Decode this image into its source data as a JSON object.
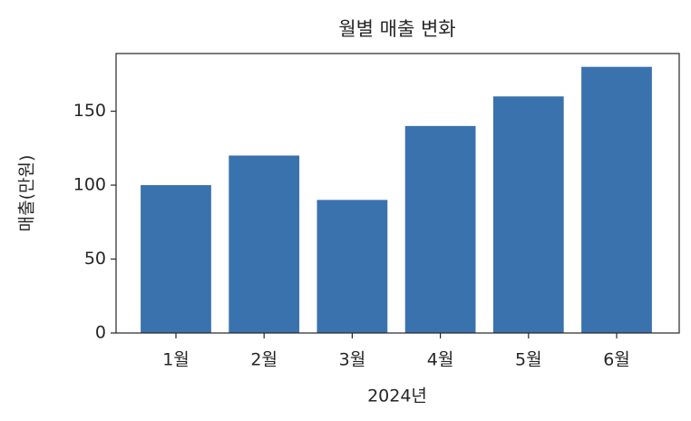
{
  "chart_data": {
    "type": "bar",
    "title": "월별 매출 변화",
    "categories": [
      "1월",
      "2월",
      "3월",
      "4월",
      "5월",
      "6월"
    ],
    "values": [
      100,
      120,
      90,
      140,
      160,
      180
    ],
    "color": "#3a72ae",
    "x_label": "2024년",
    "y_label": "매출(만원)",
    "ylim": [
      0,
      189
    ],
    "yticks": [
      0,
      50,
      100,
      150
    ],
    "grid": false
  }
}
